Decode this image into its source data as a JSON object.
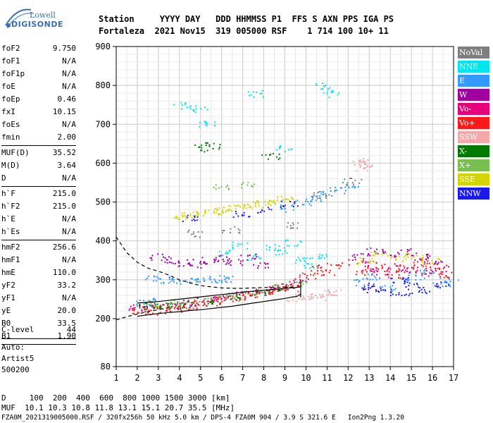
{
  "logo": {
    "line1": "Lowell",
    "line2": "DIGISONDE"
  },
  "header": {
    "line1": "Station     YYYY DAY   DDD HHMMSS P1  FFS S AXN PPS IGA PS",
    "line2": "Fortaleza  2021 Nov15  319 005000 RSF    1 714 100 10+ 11"
  },
  "params_group1": [
    {
      "name": "foF2",
      "value": "9.750"
    },
    {
      "name": "foF1",
      "value": "N/A"
    },
    {
      "name": "foF1p",
      "value": "N/A"
    },
    {
      "name": "foE",
      "value": "N/A"
    },
    {
      "name": "foEp",
      "value": "0.46"
    },
    {
      "name": "fxI",
      "value": "10.15"
    },
    {
      "name": "foEs",
      "value": "N/A"
    },
    {
      "name": "fmin",
      "value": "2.00"
    }
  ],
  "params_group2": [
    {
      "name": "MUF(D)",
      "value": "35.52"
    },
    {
      "name": "M(D)",
      "value": "3.64"
    },
    {
      "name": "D",
      "value": "N/A"
    }
  ],
  "params_group3": [
    {
      "name": "h`F",
      "value": "215.0"
    },
    {
      "name": "h`F2",
      "value": "215.0"
    },
    {
      "name": "h`E",
      "value": "N/A"
    },
    {
      "name": "h`Es",
      "value": "N/A"
    }
  ],
  "params_group4": [
    {
      "name": "hmF2",
      "value": "256.6"
    },
    {
      "name": "hmF1",
      "value": "N/A"
    },
    {
      "name": "hmE",
      "value": "110.0"
    },
    {
      "name": "yF2",
      "value": "33.2"
    },
    {
      "name": "yF1",
      "value": "N/A"
    },
    {
      "name": "yE",
      "value": "20.0"
    },
    {
      "name": "B0",
      "value": "33.5"
    },
    {
      "name": "B1",
      "value": "1.90"
    }
  ],
  "params_group5": [
    {
      "name": "C-level",
      "value": "44"
    }
  ],
  "side_notes": [
    "Auto:",
    "Artist5",
    "500200"
  ],
  "legend": [
    {
      "label": "NoVal",
      "color": "#7f7f7f"
    },
    {
      "label": "NNE",
      "color": "#00e5ee"
    },
    {
      "label": "E",
      "color": "#3399ff"
    },
    {
      "label": "W",
      "color": "#a000a0"
    },
    {
      "label": "Vo-",
      "color": "#e8007a"
    },
    {
      "label": "Vo+",
      "color": "#ff1a1a"
    },
    {
      "label": "SSW",
      "color": "#f4a8a8"
    },
    {
      "label": "X-",
      "color": "#007a00"
    },
    {
      "label": "X+",
      "color": "#77c050"
    },
    {
      "label": "SSE",
      "color": "#d4d400"
    },
    {
      "label": "NNW",
      "color": "#1a1aee"
    }
  ],
  "footer": {
    "d_line": "D     100  200  400  600  800 1000 1500 3000 [km]",
    "muf_line": "MUF  10.1 10.3 10.8 11.8 13.1 15.1 20.7 35.5 [MHz]",
    "file_line": "FZA0M_2021319005000.RSF / 320fx256h 50 kHz 5.0 km / DPS-4 FZA0M 904 / 3.9 S 321.6 E   Ion2Png 1.3.20"
  },
  "chart_data": {
    "type": "scatter",
    "x_ticks": [
      "1",
      "2",
      "3",
      "4",
      "5",
      "6",
      "7",
      "8",
      "9",
      "10",
      "11",
      "12",
      "13",
      "14",
      "15",
      "16",
      "17"
    ],
    "y_ticks": [
      "80",
      "200",
      "300",
      "400",
      "500",
      "600",
      "700",
      "800",
      "900"
    ],
    "xlim": [
      1,
      17
    ],
    "ylim": [
      80,
      900
    ],
    "grid": true,
    "legend_position": "right",
    "series": [
      {
        "color_key": "NNE",
        "points": [
          [
            6.2,
            370
          ],
          [
            6.8,
            390
          ],
          [
            7.6,
            360
          ],
          [
            8.3,
            385
          ],
          [
            8.9,
            375
          ],
          [
            9.4,
            395
          ],
          [
            9.9,
            350
          ],
          [
            10.3,
            340
          ],
          [
            10.6,
            365
          ],
          [
            4.1,
            750
          ],
          [
            4.9,
            740
          ],
          [
            5.3,
            700
          ],
          [
            7.6,
            780
          ],
          [
            8.9,
            640
          ],
          [
            10.8,
            800
          ],
          [
            11.2,
            780
          ]
        ]
      },
      {
        "color_key": "E",
        "points": [
          [
            2.8,
            302
          ],
          [
            3.4,
            301
          ],
          [
            4.0,
            299
          ],
          [
            4.6,
            300
          ],
          [
            5.2,
            302
          ],
          [
            5.8,
            301
          ],
          [
            6.2,
            303
          ],
          [
            9.2,
            485
          ],
          [
            9.8,
            500
          ],
          [
            10.4,
            512
          ],
          [
            10.9,
            522
          ],
          [
            11.5,
            532
          ],
          [
            12.1,
            545
          ],
          [
            2.3,
            241
          ],
          [
            2.6,
            245
          ],
          [
            12.6,
            295
          ],
          [
            13.2,
            310
          ],
          [
            13.9,
            280
          ],
          [
            14.5,
            300
          ],
          [
            15.2,
            310
          ],
          [
            15.8,
            320
          ],
          [
            16.4,
            300
          ],
          [
            16.8,
            292
          ]
        ]
      },
      {
        "color_key": "W",
        "points": [
          [
            3.0,
            360
          ],
          [
            3.6,
            352
          ],
          [
            4.2,
            345
          ],
          [
            4.8,
            340
          ],
          [
            5.4,
            350
          ],
          [
            6.0,
            355
          ],
          [
            6.6,
            345
          ],
          [
            7.2,
            360
          ],
          [
            7.8,
            338
          ],
          [
            12.6,
            360
          ],
          [
            13.2,
            375
          ],
          [
            14.0,
            365
          ],
          [
            14.8,
            372
          ],
          [
            15.5,
            358
          ],
          [
            16.0,
            350
          ]
        ]
      },
      {
        "color_key": "Vo-",
        "points": [
          [
            2.0,
            230
          ],
          [
            2.5,
            228
          ],
          [
            3.0,
            230
          ],
          [
            3.5,
            232
          ],
          [
            4.0,
            236
          ],
          [
            4.6,
            240
          ],
          [
            5.2,
            246
          ],
          [
            5.8,
            252
          ],
          [
            6.4,
            258
          ],
          [
            7.0,
            264
          ],
          [
            7.6,
            270
          ],
          [
            8.2,
            276
          ],
          [
            8.8,
            282
          ],
          [
            9.3,
            288
          ],
          [
            9.7,
            295
          ],
          [
            12.4,
            345
          ],
          [
            13.0,
            330
          ],
          [
            13.6,
            320
          ],
          [
            14.2,
            335
          ],
          [
            14.9,
            325
          ],
          [
            15.6,
            318
          ],
          [
            16.3,
            330
          ]
        ]
      },
      {
        "color_key": "Vo+",
        "points": [
          [
            2.1,
            222
          ],
          [
            2.7,
            220
          ],
          [
            3.2,
            224
          ],
          [
            3.8,
            226
          ],
          [
            4.4,
            232
          ],
          [
            5.0,
            238
          ],
          [
            5.6,
            244
          ],
          [
            6.2,
            250
          ],
          [
            6.8,
            256
          ],
          [
            7.4,
            262
          ],
          [
            8.0,
            268
          ],
          [
            8.6,
            272
          ],
          [
            9.2,
            278
          ],
          [
            10.1,
            310
          ],
          [
            10.5,
            330
          ],
          [
            10.9,
            320
          ],
          [
            11.3,
            340
          ],
          [
            12.7,
            320
          ],
          [
            13.3,
            340
          ],
          [
            14.1,
            315
          ],
          [
            14.7,
            330
          ],
          [
            15.4,
            345
          ],
          [
            16.1,
            335
          ],
          [
            16.6,
            315
          ]
        ]
      },
      {
        "color_key": "SSW",
        "points": [
          [
            9.5,
            255
          ],
          [
            10.0,
            260
          ],
          [
            10.5,
            255
          ],
          [
            11.0,
            265
          ],
          [
            11.4,
            270
          ],
          [
            12.5,
            605
          ],
          [
            12.7,
            590
          ],
          [
            12.9,
            600
          ]
        ]
      },
      {
        "color_key": "X-",
        "points": [
          [
            2.4,
            234
          ],
          [
            3.1,
            233
          ],
          [
            3.7,
            236
          ],
          [
            4.3,
            238
          ],
          [
            5.5,
            246
          ],
          [
            6.7,
            258
          ],
          [
            7.9,
            270
          ],
          [
            9.0,
            282
          ],
          [
            5.0,
            640
          ],
          [
            5.6,
            645
          ],
          [
            8.3,
            620
          ]
        ]
      },
      {
        "color_key": "X+",
        "points": [
          [
            2.8,
            238
          ],
          [
            3.9,
            242
          ],
          [
            5.1,
            250
          ],
          [
            6.3,
            260
          ],
          [
            7.5,
            270
          ],
          [
            8.7,
            280
          ],
          [
            9.6,
            290
          ],
          [
            6.0,
            540
          ],
          [
            7.2,
            545
          ]
        ]
      },
      {
        "color_key": "SSE",
        "points": [
          [
            4.0,
            465
          ],
          [
            4.5,
            470
          ],
          [
            5.0,
            474
          ],
          [
            5.5,
            478
          ],
          [
            6.0,
            482
          ],
          [
            6.5,
            485
          ],
          [
            7.0,
            490
          ],
          [
            7.5,
            495
          ],
          [
            8.0,
            498
          ],
          [
            8.5,
            502
          ],
          [
            9.0,
            508
          ],
          [
            12.8,
            350
          ],
          [
            13.5,
            365
          ],
          [
            14.3,
            355
          ],
          [
            15.1,
            362
          ],
          [
            15.9,
            350
          ]
        ]
      },
      {
        "color_key": "NNW",
        "points": [
          [
            4.4,
            460
          ],
          [
            6.9,
            470
          ],
          [
            8.1,
            480
          ],
          [
            9.2,
            495
          ],
          [
            12.9,
            285
          ],
          [
            13.7,
            270
          ],
          [
            14.4,
            300
          ],
          [
            15.0,
            290
          ],
          [
            15.7,
            275
          ],
          [
            16.5,
            290
          ],
          [
            13.1,
            275
          ],
          [
            14.6,
            268
          ]
        ]
      },
      {
        "color_key": "NoVal",
        "points": [
          [
            4.7,
            420
          ],
          [
            6.4,
            430
          ],
          [
            9.4,
            440
          ],
          [
            10.6,
            520
          ],
          [
            12.2,
            555
          ]
        ]
      }
    ],
    "traces": [
      {
        "name": "trace",
        "style": "dashed",
        "points": [
          [
            1.0,
            410
          ],
          [
            1.5,
            370
          ],
          [
            2.0,
            345
          ],
          [
            2.5,
            330
          ],
          [
            3.0,
            322
          ],
          [
            3.5,
            312
          ],
          [
            4.0,
            300
          ],
          [
            4.5,
            292
          ],
          [
            5.0,
            285
          ],
          [
            5.5,
            282
          ],
          [
            6.0,
            279
          ],
          [
            6.5,
            278
          ],
          [
            7.0,
            278
          ],
          [
            7.5,
            279
          ],
          [
            8.0,
            280
          ],
          [
            8.5,
            281
          ],
          [
            9.0,
            281
          ],
          [
            9.5,
            281
          ],
          [
            9.75,
            281
          ]
        ]
      },
      {
        "name": "trace",
        "style": "dashed",
        "points": [
          [
            1.0,
            197
          ],
          [
            1.5,
            205
          ],
          [
            2.0,
            212
          ],
          [
            2.5,
            218
          ],
          [
            3.0,
            223
          ]
        ]
      },
      {
        "name": "trace",
        "style": "solid",
        "points": [
          [
            2.0,
            206
          ],
          [
            2.5,
            210
          ],
          [
            3.0,
            213
          ],
          [
            3.5,
            216
          ],
          [
            4.0,
            218
          ],
          [
            4.5,
            221
          ],
          [
            5.0,
            223
          ],
          [
            5.5,
            226
          ],
          [
            6.0,
            229
          ],
          [
            6.5,
            232
          ],
          [
            7.0,
            236
          ],
          [
            7.5,
            240
          ],
          [
            8.0,
            244
          ],
          [
            8.5,
            248
          ],
          [
            9.0,
            252
          ],
          [
            9.3,
            255
          ],
          [
            9.6,
            258
          ],
          [
            9.75,
            264
          ]
        ]
      },
      {
        "name": "trace",
        "style": "solid",
        "points": [
          [
            2.0,
            240
          ],
          [
            3.0,
            244
          ],
          [
            4.0,
            250
          ],
          [
            5.0,
            256
          ],
          [
            6.0,
            262
          ],
          [
            7.0,
            268
          ],
          [
            8.0,
            273
          ],
          [
            9.0,
            278
          ],
          [
            9.5,
            280
          ],
          [
            9.75,
            282
          ]
        ]
      }
    ],
    "vertical_marker": {
      "x": 9.75
    }
  }
}
